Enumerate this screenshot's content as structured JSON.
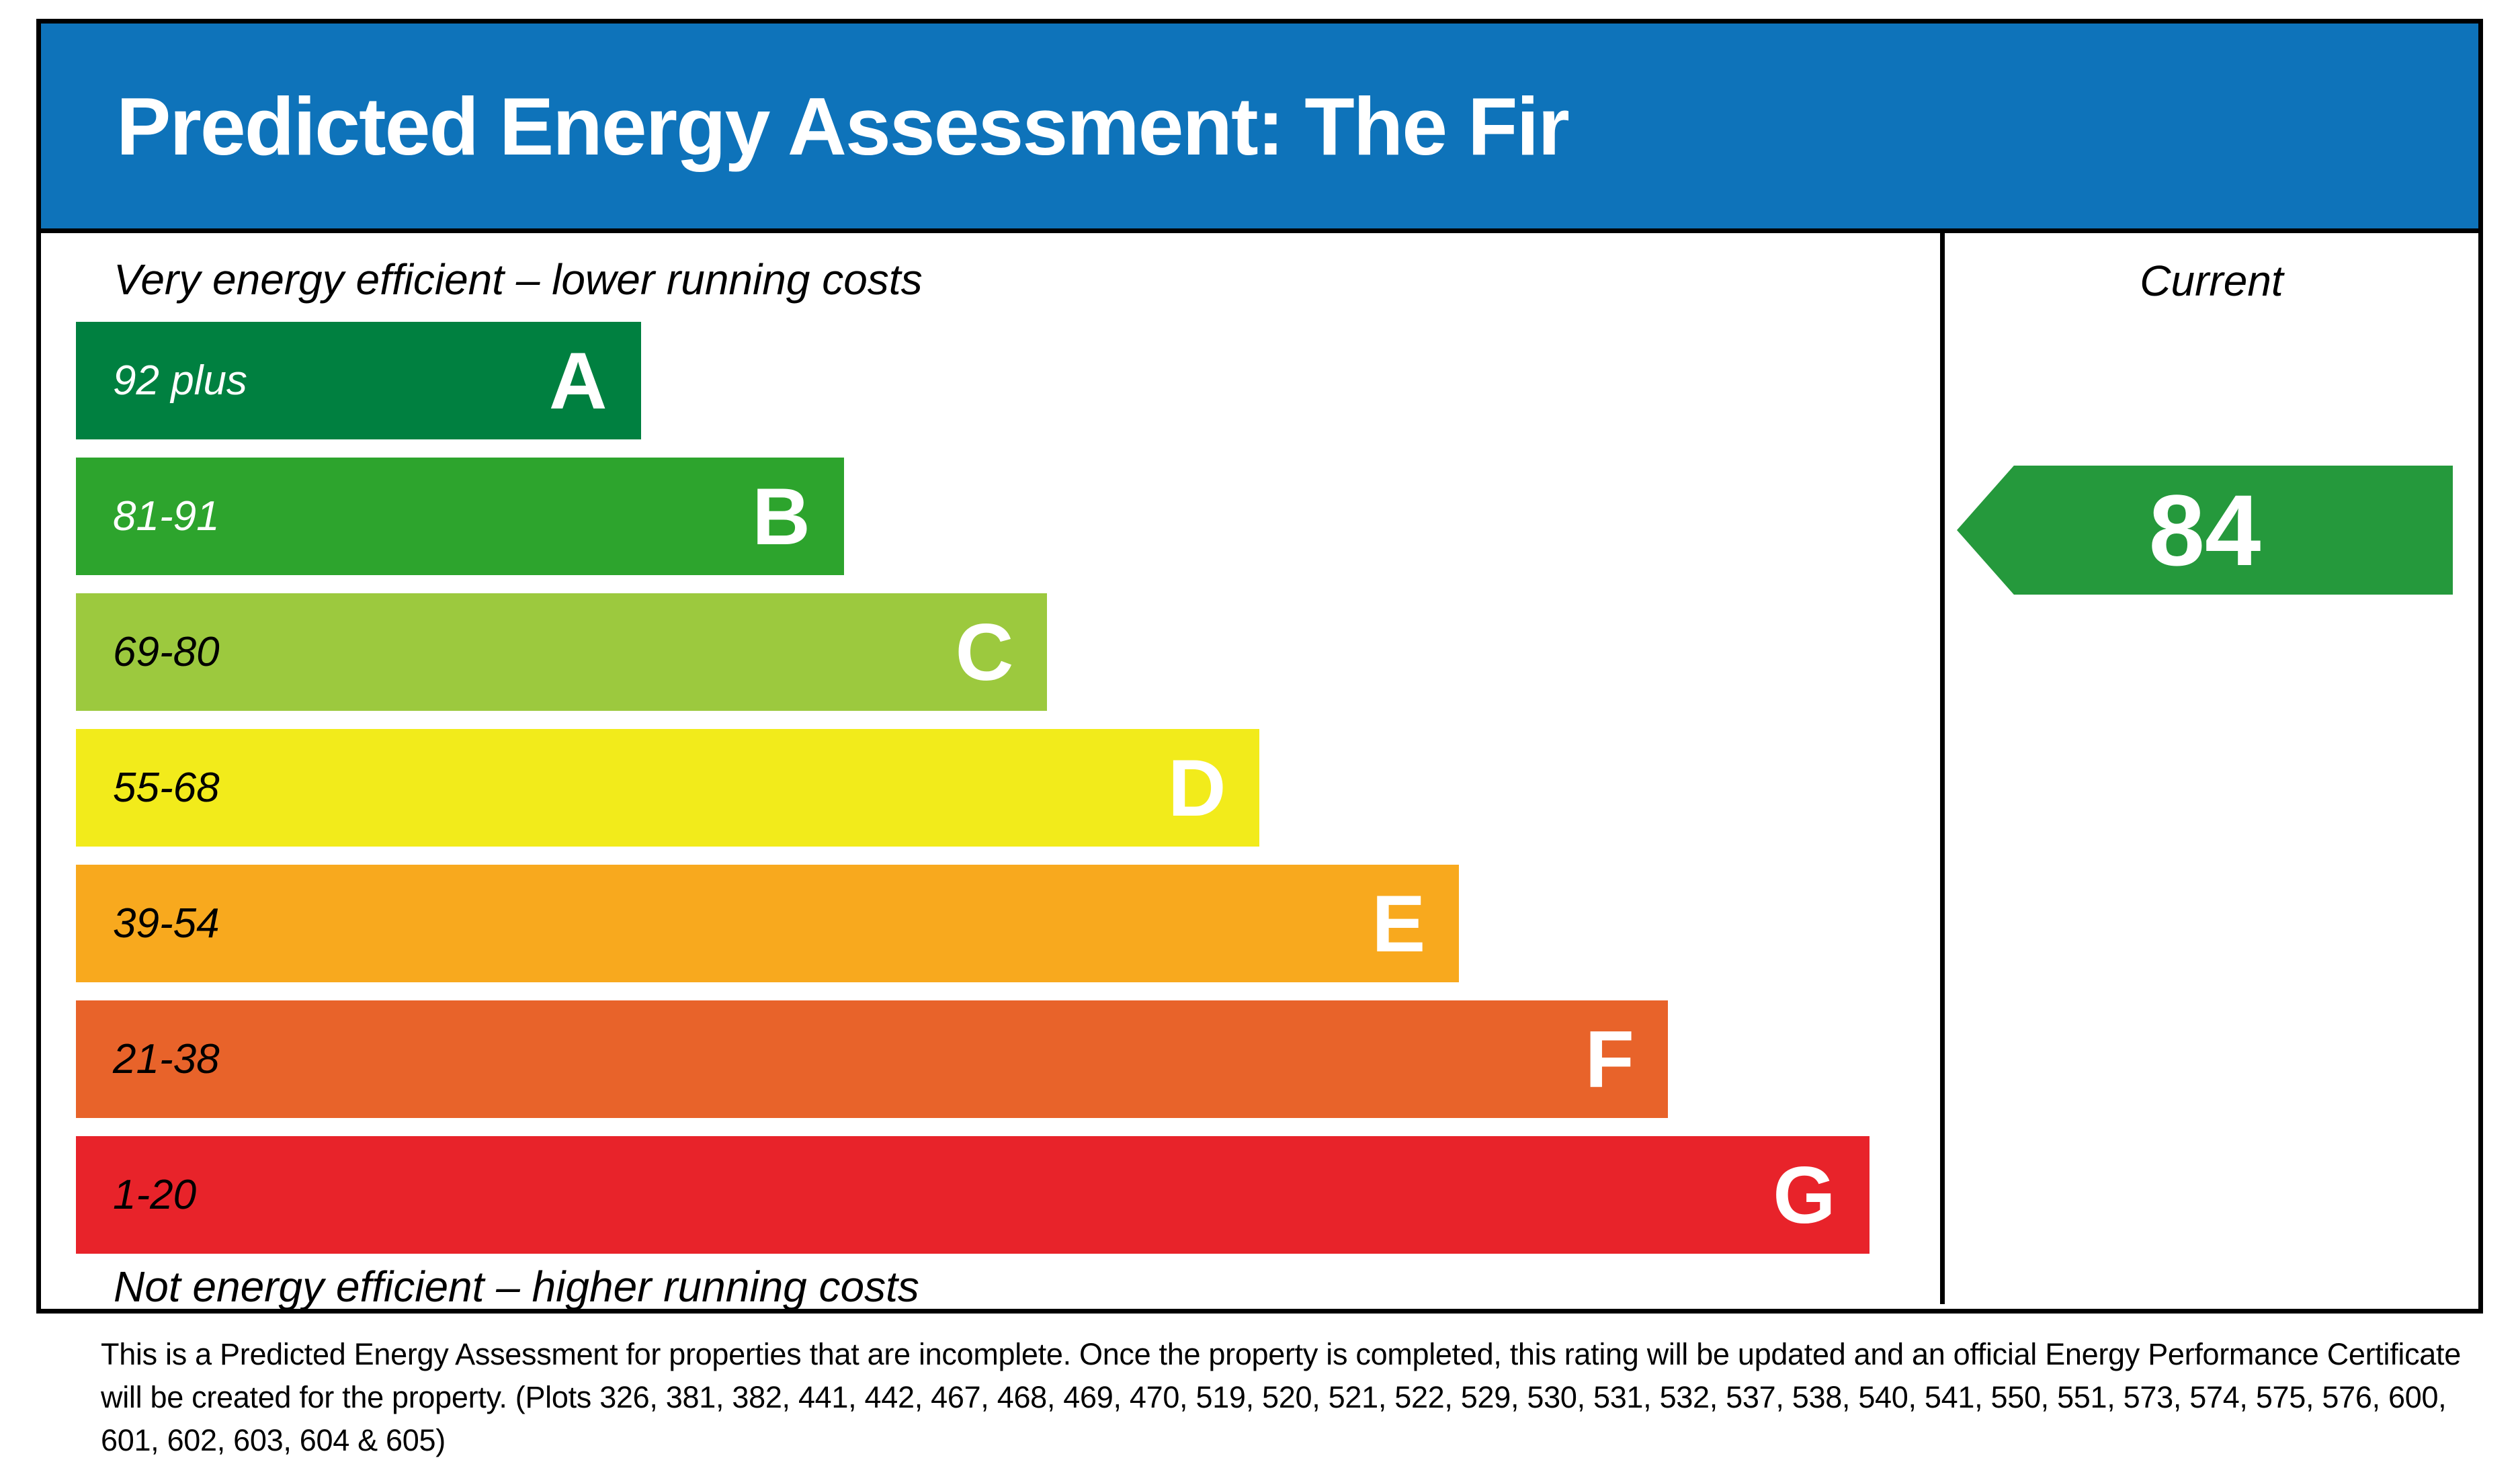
{
  "header": {
    "title": "Predicted Energy Assessment: The Fir",
    "bg_color": "#0e73ba"
  },
  "chart_data": {
    "type": "bar",
    "title": "Predicted Energy Assessment: The Fir",
    "top_caption": "Very energy efficient – lower running costs",
    "bottom_caption": "Not energy efficient – higher running costs",
    "column_header": "Current",
    "current_rating": 84,
    "current_band": "B",
    "current_color": "#25993c",
    "xlim": [
      0,
      100
    ],
    "legend_position": "none",
    "grid": false,
    "bands": [
      {
        "letter": "A",
        "range": "92 plus",
        "min": 92,
        "max": 100,
        "color": "#008040",
        "width_pct": 30.3,
        "label_color": "#ffffff"
      },
      {
        "letter": "B",
        "range": "81-91",
        "min": 81,
        "max": 91,
        "color": "#2da42d",
        "width_pct": 41.2,
        "label_color": "#ffffff"
      },
      {
        "letter": "C",
        "range": "69-80",
        "min": 69,
        "max": 80,
        "color": "#9cc93e",
        "width_pct": 52.1,
        "label_color": "#000000"
      },
      {
        "letter": "D",
        "range": "55-68",
        "min": 55,
        "max": 68,
        "color": "#f2eb1b",
        "width_pct": 63.5,
        "label_color": "#000000"
      },
      {
        "letter": "E",
        "range": "39-54",
        "min": 39,
        "max": 54,
        "color": "#f8a91e",
        "width_pct": 74.2,
        "label_color": "#000000"
      },
      {
        "letter": "F",
        "range": "21-38",
        "min": 21,
        "max": 38,
        "color": "#e8632a",
        "width_pct": 85.4,
        "label_color": "#000000"
      },
      {
        "letter": "G",
        "range": "1-20",
        "min": 1,
        "max": 20,
        "color": "#e8232a",
        "width_pct": 96.2,
        "label_color": "#000000"
      }
    ]
  },
  "footer": {
    "note": "This is a Predicted Energy Assessment for properties that are incomplete. Once the property is completed, this rating will be updated and an official Energy Performance Certificate will be created for the property. (Plots 326, 381, 382, 441, 442, 467, 468, 469, 470, 519, 520, 521, 522, 529, 530, 531, 532, 537, 538, 540, 541, 550, 551, 573, 574, 575, 576, 600, 601, 602, 603, 604 & 605)"
  }
}
